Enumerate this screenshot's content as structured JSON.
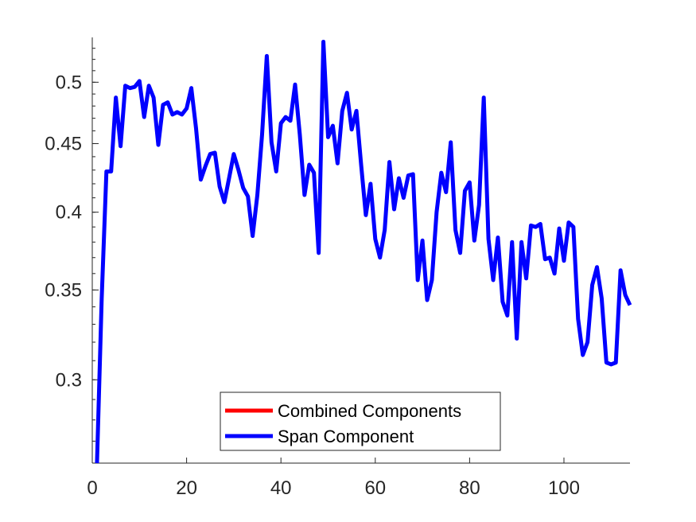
{
  "chart_data": {
    "type": "line",
    "yscale": "log",
    "xlim": [
      0,
      114
    ],
    "ylim": [
      0.26,
      0.54
    ],
    "grid": false,
    "xticks": [
      {
        "value": 0,
        "label": "0"
      },
      {
        "value": 20,
        "label": "20"
      },
      {
        "value": 40,
        "label": "40"
      },
      {
        "value": 60,
        "label": "60"
      },
      {
        "value": 80,
        "label": "80"
      },
      {
        "value": 100,
        "label": "100"
      }
    ],
    "yticks": [
      {
        "value": 0.3,
        "label": "0.3"
      },
      {
        "value": 0.35,
        "label": "0.35"
      },
      {
        "value": 0.4,
        "label": "0.4"
      },
      {
        "value": 0.45,
        "label": "0.45"
      },
      {
        "value": 0.5,
        "label": "0.5"
      }
    ],
    "legend_position": "bottom-center",
    "series": [
      {
        "name": "Combined Components",
        "color": "#ff0000",
        "values": []
      },
      {
        "name": "Span Component",
        "color": "#0000ff",
        "x": [
          1,
          2,
          3,
          4,
          5,
          6,
          7,
          8,
          9,
          10,
          11,
          12,
          13,
          14,
          15,
          16,
          17,
          18,
          19,
          20,
          21,
          22,
          23,
          24,
          25,
          26,
          27,
          28,
          29,
          30,
          31,
          32,
          33,
          34,
          35,
          36,
          37,
          38,
          39,
          40,
          41,
          42,
          43,
          44,
          45,
          46,
          47,
          48,
          49,
          50,
          51,
          52,
          53,
          54,
          55,
          56,
          57,
          58,
          59,
          60,
          61,
          62,
          63,
          64,
          65,
          66,
          67,
          68,
          69,
          70,
          71,
          72,
          73,
          74,
          75,
          76,
          77,
          78,
          79,
          80,
          81,
          82,
          83,
          84,
          85,
          86,
          87,
          88,
          89,
          90,
          91,
          92,
          93,
          94,
          95,
          96,
          97,
          98,
          99,
          100,
          101,
          102,
          103,
          104,
          105,
          106,
          107,
          108,
          109,
          110,
          111,
          112,
          113,
          114
        ],
        "values": [
          0.26,
          0.345,
          0.429,
          0.429,
          0.487,
          0.448,
          0.497,
          0.495,
          0.496,
          0.501,
          0.471,
          0.497,
          0.487,
          0.449,
          0.481,
          0.483,
          0.473,
          0.475,
          0.473,
          0.478,
          0.495,
          0.462,
          0.423,
          0.433,
          0.442,
          0.443,
          0.418,
          0.407,
          0.424,
          0.442,
          0.43,
          0.417,
          0.411,
          0.384,
          0.412,
          0.457,
          0.523,
          0.451,
          0.429,
          0.466,
          0.471,
          0.468,
          0.498,
          0.457,
          0.412,
          0.434,
          0.428,
          0.373,
          0.536,
          0.455,
          0.464,
          0.435,
          0.476,
          0.491,
          0.461,
          0.476,
          0.434,
          0.398,
          0.42,
          0.382,
          0.37,
          0.388,
          0.436,
          0.402,
          0.424,
          0.41,
          0.426,
          0.427,
          0.356,
          0.381,
          0.344,
          0.356,
          0.4,
          0.428,
          0.414,
          0.451,
          0.388,
          0.373,
          0.415,
          0.421,
          0.381,
          0.405,
          0.487,
          0.382,
          0.356,
          0.383,
          0.343,
          0.335,
          0.38,
          0.322,
          0.38,
          0.357,
          0.391,
          0.39,
          0.392,
          0.369,
          0.37,
          0.36,
          0.389,
          0.368,
          0.393,
          0.39,
          0.333,
          0.313,
          0.32,
          0.353,
          0.364,
          0.345,
          0.309,
          0.308,
          0.309,
          0.362,
          0.347,
          0.341
        ]
      }
    ]
  }
}
